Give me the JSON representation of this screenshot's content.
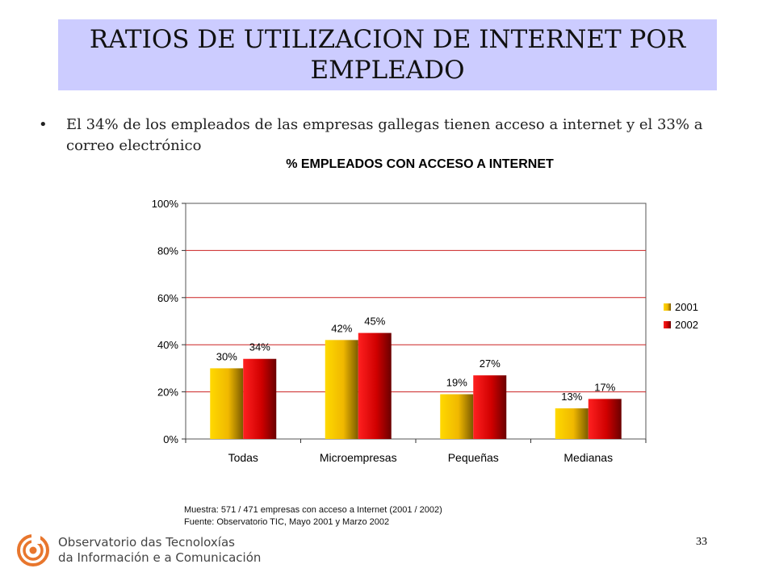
{
  "slide": {
    "title": "RATIOS DE UTILIZACION DE INTERNET POR EMPLEADO",
    "bullet_marker": "•",
    "bullet_text": "El 34% de los empleados de las empresas gallegas tienen acceso a internet y el 33% a correo electrónico",
    "page_number": "33"
  },
  "notes": {
    "sample": "Muestra: 571 / 471 empresas con acceso a Internet (2001 / 2002)",
    "source": "Fuente: Observatorio TIC, Mayo 2001 y Marzo 2002"
  },
  "logo": {
    "line1": "Observatorio das Tecnoloxías",
    "line2": "da Información e a Comunicación",
    "color": "#e8762d"
  },
  "chart_data": {
    "type": "bar",
    "title": "% EMPLEADOS CON ACCESO A INTERNET",
    "categories": [
      "Todas",
      "Microempresas",
      "Pequeñas",
      "Medianas"
    ],
    "series": [
      {
        "name": "2001",
        "values": [
          30,
          42,
          19,
          13
        ],
        "labels": [
          "30%",
          "42%",
          "19%",
          "13%"
        ],
        "color": "#f2c200"
      },
      {
        "name": "2002",
        "values": [
          34,
          45,
          27,
          17
        ],
        "labels": [
          "34%",
          "45%",
          "27%",
          "17%"
        ],
        "color": "#e01010"
      }
    ],
    "ylim": [
      0,
      100
    ],
    "yticks": [
      "0%",
      "20%",
      "40%",
      "60%",
      "80%",
      "100%"
    ],
    "grid": true,
    "grid_color": "#cc2222",
    "legend_position": "right"
  }
}
